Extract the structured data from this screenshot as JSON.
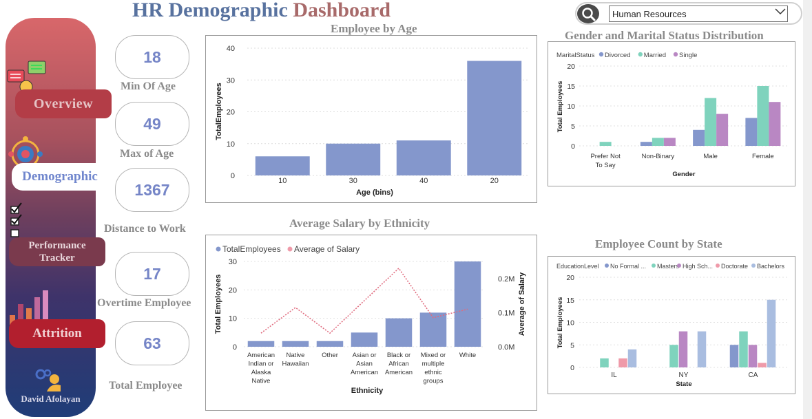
{
  "title": {
    "part1": "HR Demographic",
    "part2": "Dashboard"
  },
  "search": {
    "selected": "Human Resources"
  },
  "sidebar": {
    "overview": "Overview",
    "demographic": "Demographic",
    "performance_line1": "Performance",
    "performance_line2": "Tracker",
    "attrition": "Attrition",
    "author": "David Afolayan"
  },
  "kpis": [
    {
      "value": "18",
      "label": "Min Of Age"
    },
    {
      "value": "49",
      "label": "Max of Age"
    },
    {
      "value": "1367",
      "label": "Distance to Work"
    },
    {
      "value": "17",
      "label": "Overtime Employee"
    },
    {
      "value": "63",
      "label": "Total Employee"
    }
  ],
  "colors": {
    "blue": "#8497cc",
    "green": "#7fd3bd",
    "purple": "#b987c3",
    "pink": "#ef9aa9",
    "lightblue": "#a9bde0",
    "line": "#e06b7e"
  },
  "chart_data": [
    {
      "type": "bar",
      "title": "Employee by Age",
      "xlabel": "Age (bins)",
      "ylabel": "TotalEmployees",
      "categories": [
        "10",
        "30",
        "40",
        "20"
      ],
      "values": [
        6,
        10,
        11,
        36
      ],
      "ylim": [
        0,
        40
      ],
      "yticks": [
        "0",
        "10",
        "20",
        "30",
        "40"
      ]
    },
    {
      "type": "bar",
      "title": "Gender and Marital Status Distribution",
      "xlabel": "Gender",
      "ylabel": "Total Employees",
      "legend_title": "MaritalStatus",
      "categories": [
        "Prefer Not To Say",
        "Non-Binary",
        "Male",
        "Female"
      ],
      "category_lines": [
        [
          "Prefer Not",
          "To Say"
        ],
        [
          "Non-Binary"
        ],
        [
          "Male"
        ],
        [
          "Female"
        ]
      ],
      "series": [
        {
          "name": "Divorced",
          "values": [
            0,
            1,
            4,
            7
          ]
        },
        {
          "name": "Married",
          "values": [
            1,
            2,
            12,
            15
          ]
        },
        {
          "name": "Single",
          "values": [
            0,
            2,
            8,
            11
          ]
        }
      ],
      "ylim": [
        0,
        20
      ],
      "yticks": [
        "0",
        "5",
        "10",
        "15",
        "20"
      ]
    },
    {
      "type": "bar",
      "title": "Average Salary by Ethnicity",
      "xlabel": "Ethnicity",
      "ylabel": "Total Employees",
      "y2label": "Average of Salary",
      "categories": [
        "American Indian or Alaska Native",
        "Native Hawaiian",
        "Other",
        "Asian or Asian American",
        "Black or African American",
        "Mixed or multiple ethnic groups",
        "White"
      ],
      "category_lines": [
        [
          "American",
          "Indian or",
          "Alaska",
          "Native"
        ],
        [
          "Native",
          "Hawaiian"
        ],
        [
          "Other"
        ],
        [
          "Asian or",
          "Asian",
          "American"
        ],
        [
          "Black or",
          "African",
          "American"
        ],
        [
          "Mixed or",
          "multiple",
          "ethnic",
          "groups"
        ],
        [
          "White"
        ]
      ],
      "series": [
        {
          "name": "TotalEmployees",
          "values": [
            2,
            2,
            2,
            5,
            10,
            12,
            30
          ]
        },
        {
          "name": "Average of Salary",
          "values": [
            40000,
            115000,
            40000,
            135000,
            230000,
            85000,
            110000
          ]
        }
      ],
      "ylim": [
        0,
        30
      ],
      "yticks": [
        "0",
        "10",
        "20",
        "30"
      ],
      "y2lim": [
        0,
        250000
      ],
      "y2ticks": [
        "0.0M",
        "0.1M",
        "0.2M"
      ]
    },
    {
      "type": "bar",
      "title": "Employee Count by State",
      "xlabel": "State",
      "ylabel": "Total Employees",
      "legend_title": "EducationLevel",
      "categories": [
        "IL",
        "NY",
        "CA"
      ],
      "series": [
        {
          "name": "No Formal ...",
          "values": [
            0,
            0,
            5
          ]
        },
        {
          "name": "Masters",
          "values": [
            2,
            5,
            8
          ]
        },
        {
          "name": "High Sch...",
          "values": [
            0,
            8,
            5
          ]
        },
        {
          "name": "Doctorate",
          "values": [
            2,
            0,
            1
          ]
        },
        {
          "name": "Bachelors",
          "values": [
            4,
            8,
            15
          ]
        }
      ],
      "ylim": [
        0,
        20
      ],
      "yticks": [
        "0",
        "5",
        "10",
        "15",
        "20"
      ]
    }
  ]
}
